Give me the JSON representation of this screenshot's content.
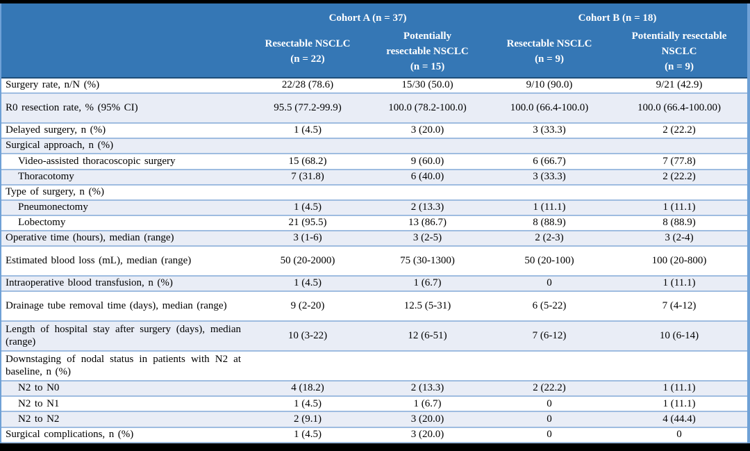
{
  "colors": {
    "header_bg": "#3577B5",
    "alt_row_bg": "#E9EDF6",
    "row_border": "#9EBCE0",
    "header_underline": "#1F4E79",
    "outer_border": "#6FA1D6",
    "frame": "#000000"
  },
  "table": {
    "header": {
      "cohort_a": "Cohort A (n = 37)",
      "cohort_b": "Cohort B (n = 18)",
      "columns": [
        {
          "lines": [
            "Resectable NSCLC",
            "(n = 22)"
          ]
        },
        {
          "lines": [
            "Potentially",
            "resectable NSCLC",
            "(n = 15)"
          ]
        },
        {
          "lines": [
            "Resectable NSCLC",
            "(n = 9)"
          ]
        },
        {
          "lines": [
            "Potentially resectable",
            "NSCLC",
            "(n = 9)"
          ]
        }
      ]
    },
    "rows": [
      {
        "label": "Surgery rate, n/N (%)",
        "values": [
          "22/28 (78.6)",
          "15/30 (50.0)",
          "9/10 (90.0)",
          "9/21 (42.9)"
        ],
        "indent": false,
        "tall": false
      },
      {
        "label": "R0 resection rate, % (95% CI)",
        "values": [
          "95.5 (77.2-99.9)",
          "100.0 (78.2-100.0)",
          "100.0 (66.4-100.0)",
          "100.0 (66.4-100.00)"
        ],
        "indent": false,
        "tall": true
      },
      {
        "label": "Delayed surgery, n (%)",
        "values": [
          "1 (4.5)",
          "3 (20.0)",
          "3 (33.3)",
          "2 (22.2)"
        ],
        "indent": false,
        "tall": false
      },
      {
        "label": "Surgical approach, n (%)",
        "values": [
          "",
          "",
          "",
          ""
        ],
        "indent": false,
        "tall": false
      },
      {
        "label": "Video-assisted thoracoscopic surgery",
        "values": [
          "15 (68.2)",
          "9 (60.0)",
          "6 (66.7)",
          "7 (77.8)"
        ],
        "indent": true,
        "tall": false
      },
      {
        "label": "Thoracotomy",
        "values": [
          "7 (31.8)",
          "6 (40.0)",
          "3 (33.3)",
          "2 (22.2)"
        ],
        "indent": true,
        "tall": false
      },
      {
        "label": "Type of surgery, n (%)",
        "values": [
          "",
          "",
          "",
          ""
        ],
        "indent": false,
        "tall": false
      },
      {
        "label": "Pneumonectomy",
        "values": [
          "1 (4.5)",
          "2 (13.3)",
          "1 (11.1)",
          "1 (11.1)"
        ],
        "indent": true,
        "tall": false
      },
      {
        "label": "Lobectomy",
        "values": [
          "21 (95.5)",
          "13 (86.7)",
          "8 (88.9)",
          "8 (88.9)"
        ],
        "indent": true,
        "tall": false
      },
      {
        "label": "Operative time (hours), median (range)",
        "values": [
          "3 (1-6)",
          "3 (2-5)",
          "2 (2-3)",
          "3 (2-4)"
        ],
        "indent": false,
        "tall": false
      },
      {
        "label": "Estimated blood loss (mL), median (range)",
        "values": [
          "50 (20-2000)",
          "75 (30-1300)",
          "50 (20-100)",
          "100 (20-800)"
        ],
        "indent": false,
        "tall": true
      },
      {
        "label": "Intraoperative blood transfusion, n (%)",
        "values": [
          "1 (4.5)",
          "1 (6.7)",
          "0",
          "1 (11.1)"
        ],
        "indent": false,
        "tall": false
      },
      {
        "label": "Drainage tube removal time (days), median (range)",
        "values": [
          "9 (2-20)",
          "12.5 (5-31)",
          "6 (5-22)",
          "7 (4-12)"
        ],
        "indent": false,
        "tall": true
      },
      {
        "label": "Length of hospital stay after surgery (days), median (range)",
        "values": [
          "10 (3-22)",
          "12 (6-51)",
          "7 (6-12)",
          "10 (6-14)"
        ],
        "indent": false,
        "tall": true
      },
      {
        "label": "Downstaging of nodal status in patients with N2 at baseline, n (%)",
        "values": [
          "",
          "",
          "",
          ""
        ],
        "indent": false,
        "tall": true
      },
      {
        "label": "N2 to N0",
        "values": [
          "4 (18.2)",
          "2 (13.3)",
          "2 (22.2)",
          "1 (11.1)"
        ],
        "indent": true,
        "tall": false
      },
      {
        "label": "N2 to N1",
        "values": [
          "1 (4.5)",
          "1 (6.7)",
          "0",
          "1 (11.1)"
        ],
        "indent": true,
        "tall": false
      },
      {
        "label": "N2 to N2",
        "values": [
          "2 (9.1)",
          "3 (20.0)",
          "0",
          "4 (44.4)"
        ],
        "indent": true,
        "tall": false
      },
      {
        "label": "Surgical complications, n (%)",
        "values": [
          "1 (4.5)",
          "3 (20.0)",
          "0",
          "0"
        ],
        "indent": false,
        "tall": false
      }
    ]
  }
}
